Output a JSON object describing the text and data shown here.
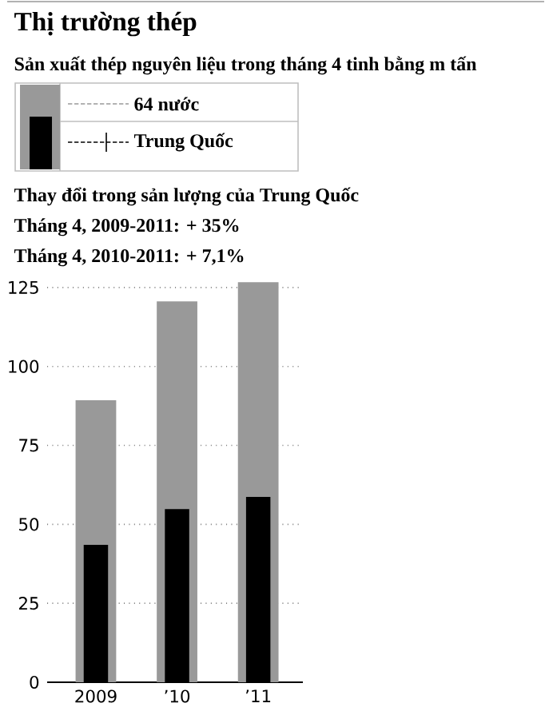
{
  "chart_data": {
    "type": "bar",
    "title": "Thị trường thép",
    "subtitle": "Sản xuất thép nguyên liệu trong tháng 4 tinh bằng m tấn",
    "annotations": [
      "Thay đổi trong sản lượng của Trung Quốc",
      "Tháng 4, 2009-2011: + 35%",
      "Tháng 4, 2010-2011: + 7,1%"
    ],
    "categories": [
      "2009",
      "’10",
      "’11"
    ],
    "series": [
      {
        "name": "64 nước",
        "color": "#999999",
        "values": [
          89.3,
          120.6,
          126.7
        ]
      },
      {
        "name": "Trung Quốc",
        "color": "#000000",
        "values": [
          43.5,
          54.8,
          58.7
        ]
      }
    ],
    "ylim": [
      0,
      128
    ],
    "yticks": [
      0,
      25,
      50,
      75,
      100,
      125
    ],
    "grid": "y",
    "legend": "top"
  }
}
